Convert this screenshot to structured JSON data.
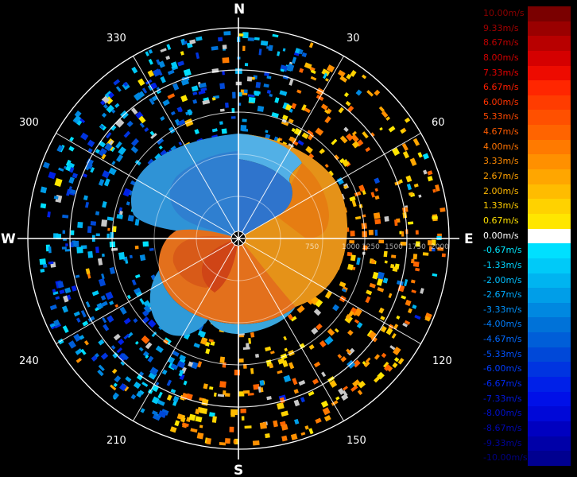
{
  "radar": {
    "cardinals": {
      "n": "N",
      "e": "E",
      "s": "S",
      "w": "W"
    },
    "azimuth_labels": [
      "30",
      "60",
      "120",
      "150",
      "210",
      "240",
      "300",
      "330"
    ],
    "range_labels": [
      "750",
      "1000",
      "1250",
      "1500",
      "1750",
      "2000"
    ],
    "range_unit_note": ""
  },
  "colorbar": {
    "entries": [
      {
        "label": "10.00m/s",
        "color": "#7a0000",
        "text_color": "#8b0000"
      },
      {
        "label": "9.33m/s",
        "color": "#9a0000",
        "text_color": "#a40000"
      },
      {
        "label": "8.67m/s",
        "color": "#b80000",
        "text_color": "#bb0000"
      },
      {
        "label": "8.00m/s",
        "color": "#d50000",
        "text_color": "#d00000"
      },
      {
        "label": "7.33m/s",
        "color": "#ee0b00",
        "text_color": "#e60000"
      },
      {
        "label": "6.67m/s",
        "color": "#ff2600",
        "text_color": "#ff1e00"
      },
      {
        "label": "6.00m/s",
        "color": "#ff3c00",
        "text_color": "#ff3300"
      },
      {
        "label": "5.33m/s",
        "color": "#ff5000",
        "text_color": "#ff4800"
      },
      {
        "label": "4.67m/s",
        "color": "#ff6400",
        "text_color": "#ff5c00"
      },
      {
        "label": "4.00m/s",
        "color": "#ff7a00",
        "text_color": "#ff7200"
      },
      {
        "label": "3.33m/s",
        "color": "#ff9000",
        "text_color": "#ff8a00"
      },
      {
        "label": "2.67m/s",
        "color": "#ffa600",
        "text_color": "#ffa000"
      },
      {
        "label": "2.00m/s",
        "color": "#ffbc00",
        "text_color": "#ffb600"
      },
      {
        "label": "1.33m/s",
        "color": "#ffd200",
        "text_color": "#ffcc00"
      },
      {
        "label": "0.67m/s",
        "color": "#ffe600",
        "text_color": "#ffe000"
      },
      {
        "label": "0.00m/s",
        "color": "#ffffff",
        "text_color": "#ffffff"
      },
      {
        "label": "-0.67m/s",
        "color": "#00e0ff",
        "text_color": "#00e8ff"
      },
      {
        "label": "-1.33m/s",
        "color": "#00caf8",
        "text_color": "#00d4ff"
      },
      {
        "label": "-2.00m/s",
        "color": "#00b4f0",
        "text_color": "#00c0ff"
      },
      {
        "label": "-2.67m/s",
        "color": "#009ee8",
        "text_color": "#00aaff"
      },
      {
        "label": "-3.33m/s",
        "color": "#0088e0",
        "text_color": "#0094ff"
      },
      {
        "label": "-4.00m/s",
        "color": "#0072d8",
        "text_color": "#007eff"
      },
      {
        "label": "-4.67m/s",
        "color": "#005ed8",
        "text_color": "#0068ff"
      },
      {
        "label": "-5.33m/s",
        "color": "#0048d8",
        "text_color": "#0052ff"
      },
      {
        "label": "-6.00m/s",
        "color": "#0034e0",
        "text_color": "#003cff"
      },
      {
        "label": "-6.67m/s",
        "color": "#0020e8",
        "text_color": "#0028f0"
      },
      {
        "label": "-7.33m/s",
        "color": "#0010e8",
        "text_color": "#0018e0"
      },
      {
        "label": "-8.00m/s",
        "color": "#0008d8",
        "text_color": "#0010cc"
      },
      {
        "label": "-8.67m/s",
        "color": "#0000c0",
        "text_color": "#0008b0"
      },
      {
        "label": "-9.33m/s",
        "color": "#0000a8",
        "text_color": "#000498"
      },
      {
        "label": "-10.00m/s",
        "color": "#000090",
        "text_color": "#000080"
      }
    ]
  }
}
